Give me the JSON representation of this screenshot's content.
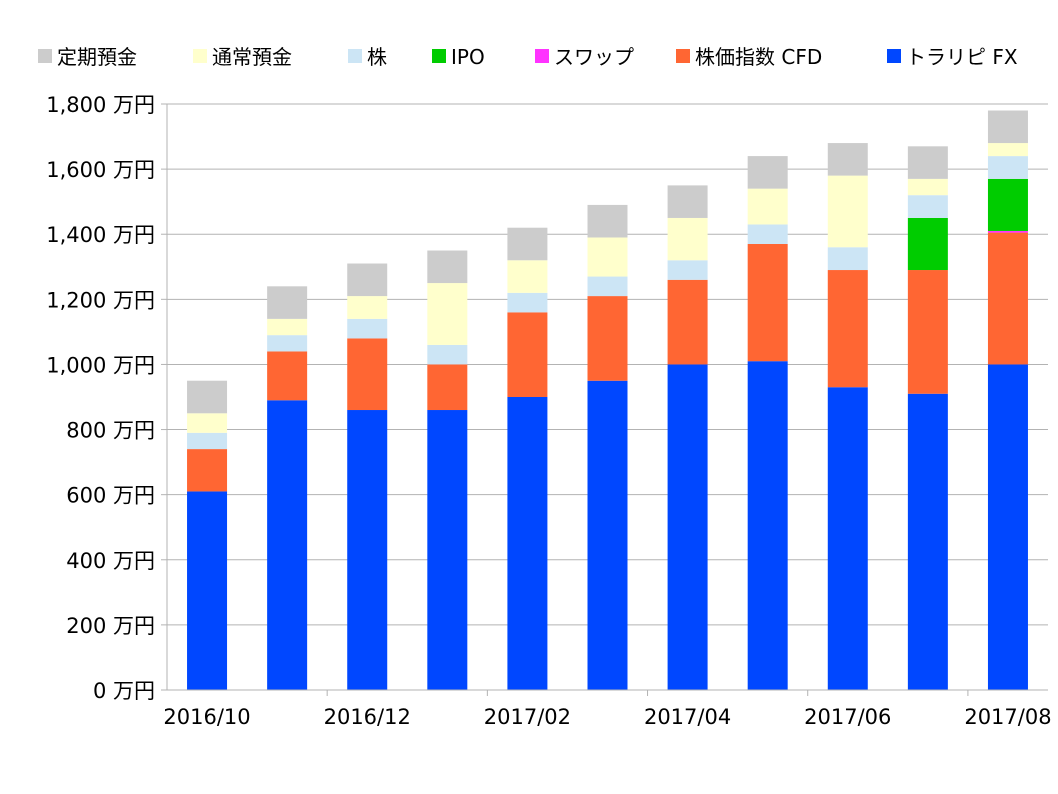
{
  "chart_data": {
    "type": "bar",
    "stacked": true,
    "categories": [
      "2016/10",
      "2016/11",
      "2016/12",
      "2017/01",
      "2017/02",
      "2017/03",
      "2017/04",
      "2017/05",
      "2017/06",
      "2017/07",
      "2017/08"
    ],
    "x_tick_labels": [
      "2016/10",
      "",
      "2016/12",
      "",
      "2017/02",
      "",
      "2017/04",
      "",
      "2017/06",
      "",
      "2017/08"
    ],
    "y_tick_labels": [
      "0 万円",
      "200 万円",
      "400 万円",
      "600 万円",
      "800 万円",
      "1,000 万円",
      "1,200 万円",
      "1,400 万円",
      "1,600 万円",
      "1,800 万円"
    ],
    "ylim": [
      0,
      1800
    ],
    "y_step": 200,
    "grid": true,
    "legend_position": "top",
    "series": [
      {
        "name": "トラリピ FX",
        "color": "#0047ff",
        "values": [
          610,
          890,
          860,
          860,
          900,
          950,
          1000,
          1010,
          930,
          910,
          1000
        ]
      },
      {
        "name": "株価指数 CFD",
        "color": "#ff6633",
        "values": [
          130,
          150,
          220,
          140,
          260,
          260,
          260,
          360,
          360,
          380,
          405
        ]
      },
      {
        "name": "スワップ",
        "color": "#ff33ff",
        "values": [
          0,
          0,
          0,
          0,
          0,
          0,
          0,
          0,
          0,
          0,
          5
        ]
      },
      {
        "name": "IPO",
        "color": "#00cc00",
        "values": [
          0,
          0,
          0,
          0,
          0,
          0,
          0,
          0,
          0,
          160,
          160
        ]
      },
      {
        "name": "株",
        "color": "#cce5f5",
        "values": [
          50,
          50,
          60,
          60,
          60,
          60,
          60,
          60,
          70,
          70,
          70
        ]
      },
      {
        "name": "通常預金",
        "color": "#ffffcc",
        "values": [
          60,
          50,
          70,
          190,
          100,
          120,
          130,
          110,
          220,
          50,
          40
        ]
      },
      {
        "name": "定期預金",
        "color": "#cccccc",
        "values": [
          100,
          100,
          100,
          100,
          100,
          100,
          100,
          100,
          100,
          100,
          100
        ]
      }
    ],
    "legend_order": [
      "定期預金",
      "通常預金",
      "株",
      "IPO",
      "スワップ",
      "株価指数 CFD",
      "トラリピ FX"
    ]
  }
}
